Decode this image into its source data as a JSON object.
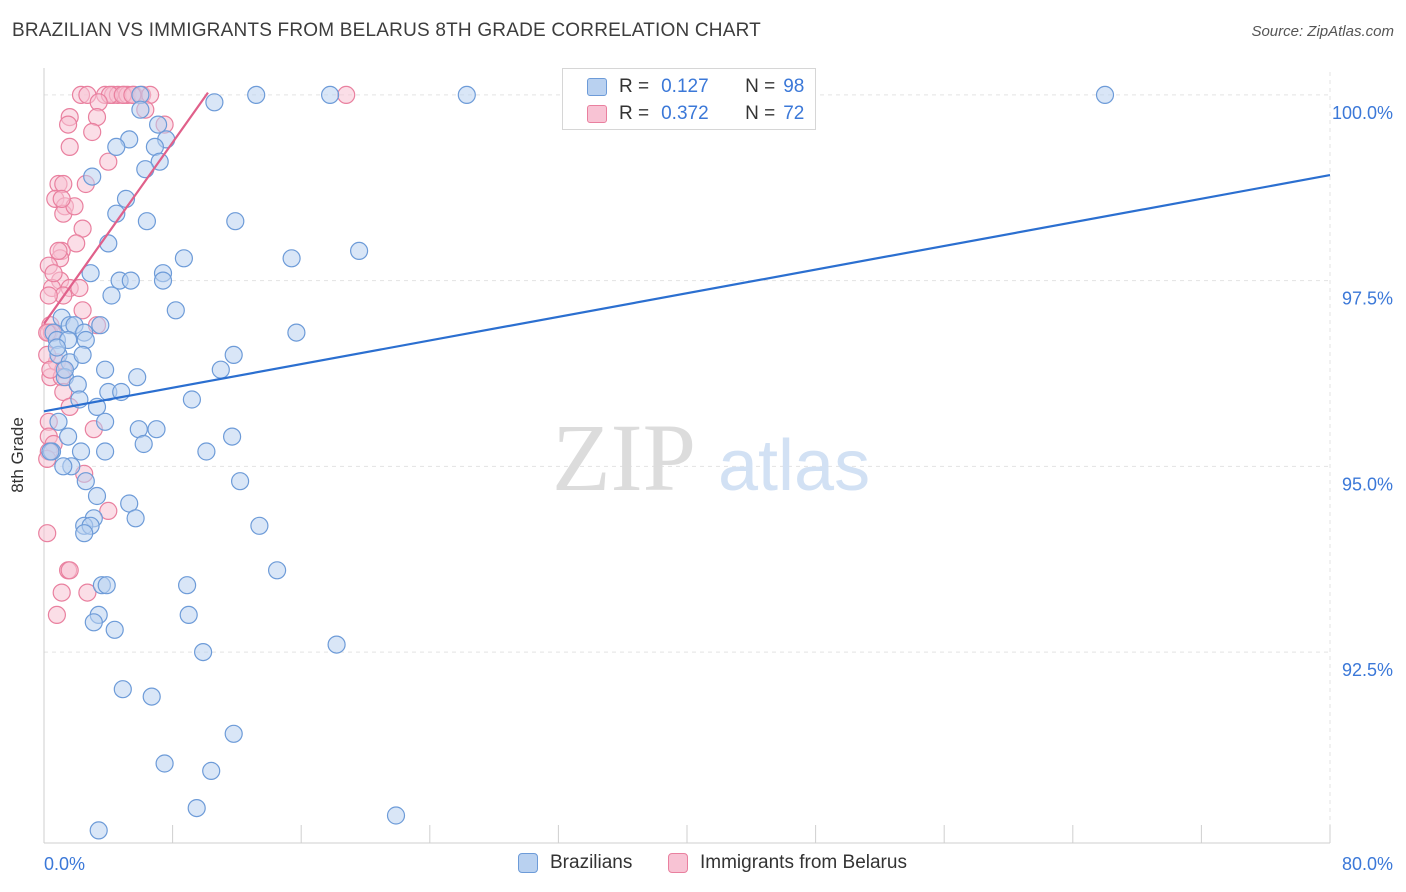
{
  "header": {
    "title": "BRAZILIAN VS IMMIGRANTS FROM BELARUS 8TH GRADE CORRELATION CHART",
    "source": "Source: ZipAtlas.com"
  },
  "watermark": {
    "zip": "ZIP",
    "atlas": "atlas"
  },
  "legend": {
    "series": [
      {
        "r_label": "R =",
        "r_value": "0.127",
        "n_label": "N =",
        "n_value": "98"
      },
      {
        "r_label": "R =",
        "r_value": "0.372",
        "n_label": "N =",
        "n_value": "72"
      }
    ]
  },
  "colors": {
    "blue_fill": "#b9d1f0",
    "blue_stroke": "#6d9bd8",
    "blue_line": "#2b6fd0",
    "pink_fill": "#f8c3d4",
    "pink_stroke": "#e9809f",
    "pink_line": "#e0608a",
    "axis_text": "#3b78d8",
    "grid": "#e3e3e3"
  },
  "chart_data": {
    "type": "scatter",
    "title": "BRAZILIAN VS IMMIGRANTS FROM BELARUS 8TH GRADE CORRELATION CHART",
    "xlabel": "",
    "ylabel": "8th Grade",
    "xlim": [
      0,
      80
    ],
    "ylim": [
      89.93,
      100.2
    ],
    "x_tick_labels": [
      {
        "value": 0,
        "label": "0.0%"
      },
      {
        "value": 80,
        "label": "80.0%"
      }
    ],
    "y_tick_labels": [
      {
        "value": 100,
        "label": "100.0%"
      },
      {
        "value": 97.5,
        "label": "97.5%"
      },
      {
        "value": 95,
        "label": "95.0%"
      },
      {
        "value": 92.5,
        "label": "92.5%"
      }
    ],
    "x_minor_ticks": [
      8,
      16,
      24,
      32,
      40,
      48,
      56,
      64,
      72,
      80
    ],
    "series": [
      {
        "name": "Brazilians",
        "trend": {
          "x": [
            0,
            80
          ],
          "y": [
            95.74,
            98.92
          ]
        },
        "points": [
          [
            10.6,
            99.9
          ],
          [
            13.2,
            100
          ],
          [
            17.8,
            100
          ],
          [
            26.3,
            100
          ],
          [
            66,
            100
          ],
          [
            6,
            100
          ],
          [
            6,
            99.8
          ],
          [
            7.1,
            99.6
          ],
          [
            5.3,
            99.4
          ],
          [
            7.6,
            99.4
          ],
          [
            4.5,
            99.3
          ],
          [
            6.9,
            99.3
          ],
          [
            7.2,
            99.1
          ],
          [
            6.3,
            99
          ],
          [
            3,
            98.9
          ],
          [
            5.1,
            98.6
          ],
          [
            4.5,
            98.4
          ],
          [
            6.4,
            98.3
          ],
          [
            11.9,
            98.3
          ],
          [
            4,
            98
          ],
          [
            19.6,
            97.9
          ],
          [
            8.7,
            97.8
          ],
          [
            15.4,
            97.8
          ],
          [
            7.4,
            97.6
          ],
          [
            2.9,
            97.6
          ],
          [
            4.7,
            97.5
          ],
          [
            5.4,
            97.5
          ],
          [
            7.4,
            97.5
          ],
          [
            4.2,
            97.3
          ],
          [
            8.2,
            97.1
          ],
          [
            1.1,
            97
          ],
          [
            1.6,
            96.9
          ],
          [
            1.9,
            96.9
          ],
          [
            3.5,
            96.9
          ],
          [
            0.6,
            96.8
          ],
          [
            2.5,
            96.8
          ],
          [
            15.7,
            96.8
          ],
          [
            0.8,
            96.7
          ],
          [
            1.5,
            96.7
          ],
          [
            2.6,
            96.7
          ],
          [
            0.9,
            96.5
          ],
          [
            11.8,
            96.5
          ],
          [
            1.6,
            96.4
          ],
          [
            11,
            96.3
          ],
          [
            1.3,
            96.2
          ],
          [
            5.8,
            96.2
          ],
          [
            2.1,
            96.1
          ],
          [
            4,
            96
          ],
          [
            4.8,
            96
          ],
          [
            9.2,
            95.9
          ],
          [
            3.3,
            95.8
          ],
          [
            0.9,
            95.6
          ],
          [
            3.8,
            95.6
          ],
          [
            5.9,
            95.5
          ],
          [
            7,
            95.5
          ],
          [
            11.7,
            95.4
          ],
          [
            1.5,
            95.4
          ],
          [
            0.5,
            95.2
          ],
          [
            0.4,
            95.2
          ],
          [
            2.3,
            95.2
          ],
          [
            3.8,
            95.2
          ],
          [
            10.1,
            95.2
          ],
          [
            1.7,
            95
          ],
          [
            2.6,
            94.8
          ],
          [
            12.2,
            94.8
          ],
          [
            3.3,
            94.6
          ],
          [
            5.3,
            94.5
          ],
          [
            3.1,
            94.3
          ],
          [
            5.7,
            94.3
          ],
          [
            2.5,
            94.2
          ],
          [
            2.9,
            94.2
          ],
          [
            13.4,
            94.2
          ],
          [
            2.5,
            94.1
          ],
          [
            14.5,
            93.6
          ],
          [
            3.6,
            93.4
          ],
          [
            8.9,
            93.4
          ],
          [
            3.9,
            93.4
          ],
          [
            9,
            93
          ],
          [
            3.4,
            93
          ],
          [
            3.1,
            92.9
          ],
          [
            4.4,
            92.8
          ],
          [
            18.2,
            92.6
          ],
          [
            9.9,
            92.5
          ],
          [
            4.9,
            92
          ],
          [
            6.7,
            91.9
          ],
          [
            11.8,
            91.4
          ],
          [
            7.5,
            91
          ],
          [
            10.4,
            90.9
          ],
          [
            9.5,
            90.4
          ],
          [
            21.9,
            90.3
          ],
          [
            3.4,
            90.1
          ],
          [
            1.3,
            96.3
          ],
          [
            2.2,
            95.9
          ],
          [
            1.2,
            95
          ],
          [
            0.8,
            96.6
          ],
          [
            2.4,
            96.5
          ],
          [
            3.8,
            96.3
          ],
          [
            6.2,
            95.3
          ]
        ]
      },
      {
        "name": "Immigrants from Belarus",
        "trend": {
          "x": [
            0,
            10.2
          ],
          "y": [
            96.92,
            100.03
          ]
        },
        "points": [
          [
            2.3,
            100
          ],
          [
            2.7,
            100
          ],
          [
            3.8,
            100
          ],
          [
            4.3,
            100
          ],
          [
            4.6,
            100
          ],
          [
            5,
            100
          ],
          [
            5.2,
            100
          ],
          [
            5.6,
            100
          ],
          [
            6.1,
            100
          ],
          [
            6.6,
            100
          ],
          [
            18.8,
            100
          ],
          [
            4.1,
            100
          ],
          [
            4.9,
            100
          ],
          [
            5.5,
            100
          ],
          [
            3.4,
            99.9
          ],
          [
            6.3,
            99.8
          ],
          [
            1.6,
            99.7
          ],
          [
            3.3,
            99.7
          ],
          [
            1.5,
            99.6
          ],
          [
            7.5,
            99.6
          ],
          [
            3,
            99.5
          ],
          [
            1.6,
            99.3
          ],
          [
            4,
            99.1
          ],
          [
            0.9,
            98.8
          ],
          [
            1.2,
            98.8
          ],
          [
            2.6,
            98.8
          ],
          [
            0.7,
            98.6
          ],
          [
            1.3,
            98.5
          ],
          [
            1.2,
            98.4
          ],
          [
            1.9,
            98.5
          ],
          [
            2.4,
            98.2
          ],
          [
            2,
            98
          ],
          [
            1.1,
            97.9
          ],
          [
            1,
            97.8
          ],
          [
            0.3,
            97.7
          ],
          [
            1,
            97.5
          ],
          [
            1.6,
            97.4
          ],
          [
            0.5,
            97.4
          ],
          [
            2.2,
            97.4
          ],
          [
            1.2,
            97.3
          ],
          [
            0.3,
            97.3
          ],
          [
            2.4,
            97.1
          ],
          [
            0.4,
            96.9
          ],
          [
            0.3,
            96.8
          ],
          [
            0.5,
            96.8
          ],
          [
            3.3,
            96.9
          ],
          [
            0.8,
            96.4
          ],
          [
            0.2,
            96.5
          ],
          [
            1.2,
            96.3
          ],
          [
            0.4,
            96.2
          ],
          [
            1.1,
            96.2
          ],
          [
            1.2,
            96
          ],
          [
            1.6,
            95.8
          ],
          [
            0.3,
            95.6
          ],
          [
            3.1,
            95.5
          ],
          [
            0.3,
            95.4
          ],
          [
            0.6,
            95.3
          ],
          [
            0.3,
            95.2
          ],
          [
            0.2,
            95.1
          ],
          [
            2.5,
            94.9
          ],
          [
            4,
            94.4
          ],
          [
            0.2,
            94.1
          ],
          [
            1.5,
            93.6
          ],
          [
            1.6,
            93.6
          ],
          [
            1.1,
            93.3
          ],
          [
            0.8,
            93
          ],
          [
            2.7,
            93.3
          ],
          [
            0.9,
            97.9
          ],
          [
            1.1,
            98.6
          ],
          [
            0.2,
            96.8
          ],
          [
            0.6,
            97.6
          ],
          [
            0.4,
            96.3
          ]
        ]
      }
    ]
  },
  "bottom_legend": [
    "Brazilians",
    "Immigrants from Belarus"
  ]
}
